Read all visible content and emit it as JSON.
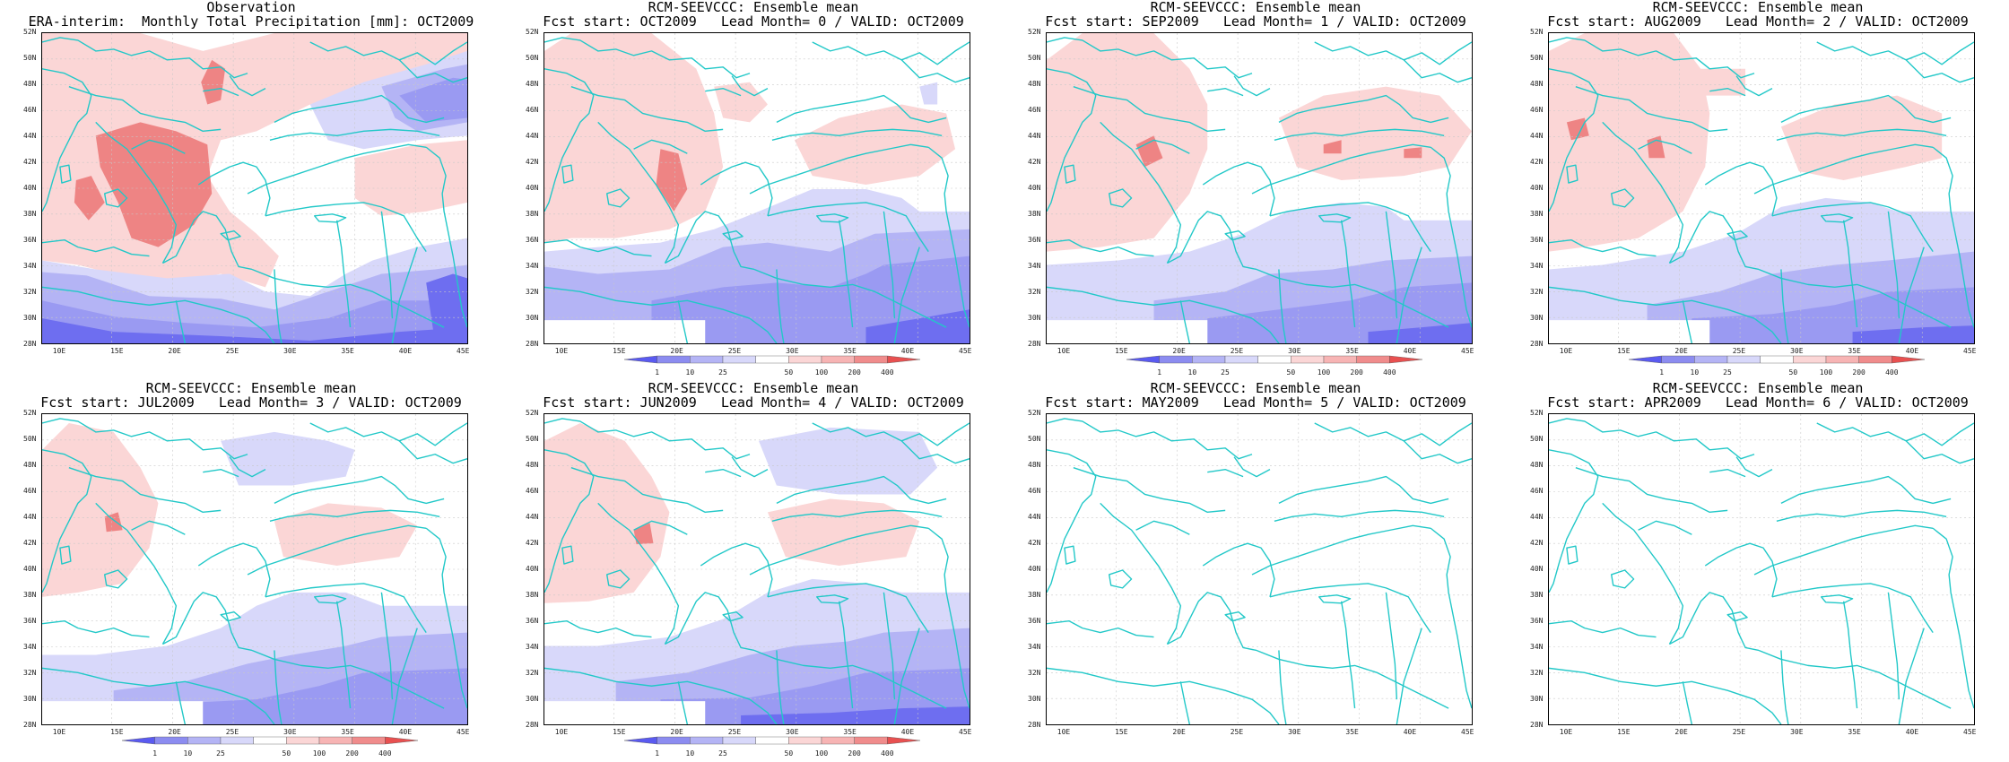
{
  "panels": [
    {
      "id": "obs",
      "title1": "Observation",
      "title2": "ERA-interim:  Monthly Total Precipitation [mm]: OCT2009",
      "fields": "obs",
      "colorbar": false
    },
    {
      "id": "lead0",
      "title1": "RCM-SEEVCCC: Ensemble mean",
      "title2": "Fcst start: OCT2009   Lead Month= 0 / VALID: OCT2009",
      "fields": "lead0",
      "colorbar": true
    },
    {
      "id": "lead1",
      "title1": "RCM-SEEVCCC: Ensemble mean",
      "title2": "Fcst start: SEP2009   Lead Month= 1 / VALID: OCT2009",
      "fields": "lead1",
      "colorbar": true
    },
    {
      "id": "lead2",
      "title1": "RCM-SEEVCCC: Ensemble mean",
      "title2": "Fcst start: AUG2009   Lead Month= 2 / VALID: OCT2009",
      "fields": "lead2",
      "colorbar": true
    },
    {
      "id": "lead3",
      "title1": "RCM-SEEVCCC: Ensemble mean",
      "title2": "Fcst start: JUL2009   Lead Month= 3 / VALID: OCT2009",
      "fields": "lead3",
      "colorbar": true
    },
    {
      "id": "lead4",
      "title1": "RCM-SEEVCCC: Ensemble mean",
      "title2": "Fcst start: JUN2009   Lead Month= 4 / VALID: OCT2009",
      "fields": "lead4",
      "colorbar": true
    },
    {
      "id": "lead5",
      "title1": "RCM-SEEVCCC: Ensemble mean",
      "title2": "Fcst start: MAY2009   Lead Month= 5 / VALID: OCT2009",
      "fields": "empty",
      "colorbar": false
    },
    {
      "id": "lead6",
      "title1": "RCM-SEEVCCC: Ensemble mean",
      "title2": "Fcst start: APR2009   Lead Month= 6 / VALID: OCT2009",
      "fields": "empty",
      "colorbar": false
    }
  ],
  "y_ticks": [
    "52N",
    "50N",
    "48N",
    "46N",
    "44N",
    "42N",
    "40N",
    "38N",
    "36N",
    "34N",
    "32N",
    "30N",
    "28N"
  ],
  "x_ticks": [
    "10E",
    "15E",
    "20E",
    "25E",
    "30E",
    "35E",
    "40E",
    "45E"
  ],
  "colorbar": {
    "levels": [
      "1",
      "10",
      "25",
      "50",
      "100",
      "200",
      "400"
    ],
    "colors": [
      "#5a5af0",
      "#8c8cf0",
      "#b4b4f5",
      "#d8d8fa",
      "#ffffff",
      "#fbd6d6",
      "#f7b4b4",
      "#f08c8c",
      "#e85050"
    ]
  },
  "colors": {
    "coast": "#22c8c8",
    "grid": "#c8c8c8",
    "blue1": "#d8d8fa",
    "blue2": "#b4b4f5",
    "blue3": "#9a9af2",
    "blue4": "#6e6ef0",
    "red1": "#fbd6d6",
    "red2": "#f5b0b0",
    "red3": "#ee8484"
  }
}
